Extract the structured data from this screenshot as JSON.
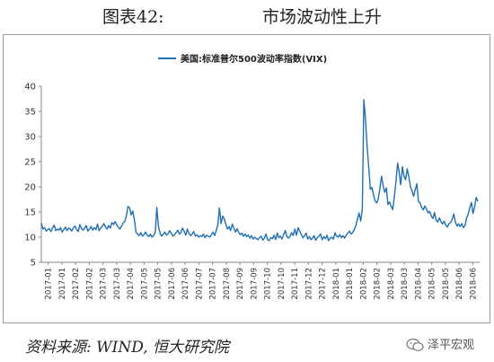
{
  "header": {
    "figure_number": "图表42:",
    "title": "市场波动性上升"
  },
  "source": "资料来源: WIND, 恒大研究院",
  "watermark": "泽平宏观",
  "colors": {
    "line": "#1f6fb5",
    "axis": "#888888"
  },
  "chart_data": {
    "type": "line",
    "legend_position": "top-center",
    "grid": false,
    "ylim": [
      5,
      40
    ],
    "yticks": [
      5,
      10,
      15,
      20,
      25,
      30,
      35,
      40
    ],
    "xticks": [
      "2017-01",
      "2017-01",
      "2017-02",
      "2017-02",
      "2017-03",
      "2017-03",
      "2017-04",
      "2017-05",
      "2017-05",
      "2017-06",
      "2017-06",
      "2017-07",
      "2017-07",
      "2017-08",
      "2017-09",
      "2017-09",
      "2017-10",
      "2017-10",
      "2017-11",
      "2017-12",
      "2017-12",
      "2018-01",
      "2018-01",
      "2018-02",
      "2018-02",
      "2018-03",
      "2018-03",
      "2018-04",
      "2018-05",
      "2018-05",
      "2018-06",
      "2018-06"
    ],
    "series": [
      {
        "name": "美国:标准普尔500波动率指数(VIX)",
        "x_range": [
          "2017-01-03",
          "2018-06-29"
        ],
        "values": [
          12.8,
          11.6,
          11.9,
          11.2,
          11.5,
          11.7,
          11.1,
          11.8,
          12.4,
          11.3,
          11.6,
          11.4,
          11.9,
          11.0,
          11.5,
          12.0,
          11.3,
          11.8,
          11.6,
          11.2,
          11.9,
          12.2,
          11.5,
          11.1,
          12.5,
          11.7,
          11.4,
          11.8,
          12.3,
          11.2,
          11.6,
          12.1,
          11.4,
          11.9,
          11.5,
          12.6,
          11.3,
          11.8,
          12.2,
          12.7,
          12.0,
          11.6,
          12.3,
          11.8,
          12.9,
          12.5,
          13.1,
          12.4,
          12.0,
          11.6,
          12.2,
          12.8,
          13.1,
          14.2,
          16.1,
          15.8,
          14.4,
          15.2,
          13.5,
          11.0,
          10.6,
          10.3,
          10.9,
          10.2,
          10.5,
          11.0,
          10.4,
          10.1,
          10.6,
          10.0,
          10.3,
          11.0,
          15.9,
          12.1,
          10.8,
          10.2,
          10.6,
          11.0,
          10.4,
          10.7,
          11.3,
          10.8,
          10.2,
          10.5,
          10.9,
          11.4,
          10.6,
          10.9,
          11.8,
          11.2,
          10.4,
          11.6,
          10.7,
          10.3,
          10.6,
          11.1,
          10.2,
          10.5,
          10.0,
          10.3,
          10.1,
          10.6,
          9.9,
          10.4,
          10.2,
          10.0,
          10.5,
          11.0,
          10.3,
          11.4,
          12.4,
          15.8,
          12.7,
          14.2,
          13.6,
          12.5,
          11.6,
          12.1,
          11.3,
          12.6,
          11.8,
          11.0,
          11.7,
          10.9,
          10.5,
          10.8,
          10.2,
          10.6,
          10.1,
          10.4,
          9.8,
          10.3,
          9.6,
          10.0,
          9.7,
          9.5,
          9.9,
          10.2,
          9.4,
          9.8,
          10.6,
          9.5,
          9.3,
          9.9,
          9.7,
          10.4,
          9.5,
          10.8,
          9.9,
          10.2,
          9.6,
          10.5,
          11.3,
          10.1,
          9.8,
          10.2,
          10.9,
          10.3,
          11.6,
          10.4,
          11.9,
          11.2,
          10.5,
          9.9,
          10.2,
          10.8,
          9.6,
          10.1,
          9.5,
          9.8,
          10.3,
          9.4,
          9.9,
          10.2,
          10.6,
          9.5,
          10.1,
          9.7,
          10.4,
          9.3,
          9.8,
          10.0,
          9.6,
          10.9,
          10.2,
          10.0,
          10.5,
          9.9,
          10.3,
          9.8,
          10.4,
          10.8,
          11.2,
          10.6,
          10.9,
          11.5,
          12.3,
          13.6,
          14.8,
          13.2,
          15.6,
          37.3,
          33.5,
          28.1,
          24.0,
          19.5,
          19.9,
          18.4,
          17.2,
          16.8,
          17.6,
          19.8,
          22.1,
          20.2,
          18.9,
          19.8,
          16.5,
          17.0,
          16.1,
          15.5,
          18.1,
          21.1,
          24.7,
          22.9,
          20.4,
          24.0,
          22.1,
          21.4,
          23.6,
          22.0,
          20.0,
          19.2,
          18.1,
          19.4,
          20.6,
          17.1,
          16.8,
          15.9,
          15.4,
          16.2,
          15.6,
          14.8,
          15.1,
          14.2,
          13.7,
          14.9,
          13.4,
          13.0,
          13.8,
          13.1,
          12.6,
          13.2,
          12.4,
          12.0,
          12.7,
          12.9,
          13.5,
          14.6,
          13.0,
          12.2,
          12.6,
          12.1,
          12.7,
          11.9,
          12.3,
          13.8,
          14.6,
          15.9,
          16.9,
          14.7,
          16.0,
          17.9,
          17.1
        ]
      }
    ]
  }
}
